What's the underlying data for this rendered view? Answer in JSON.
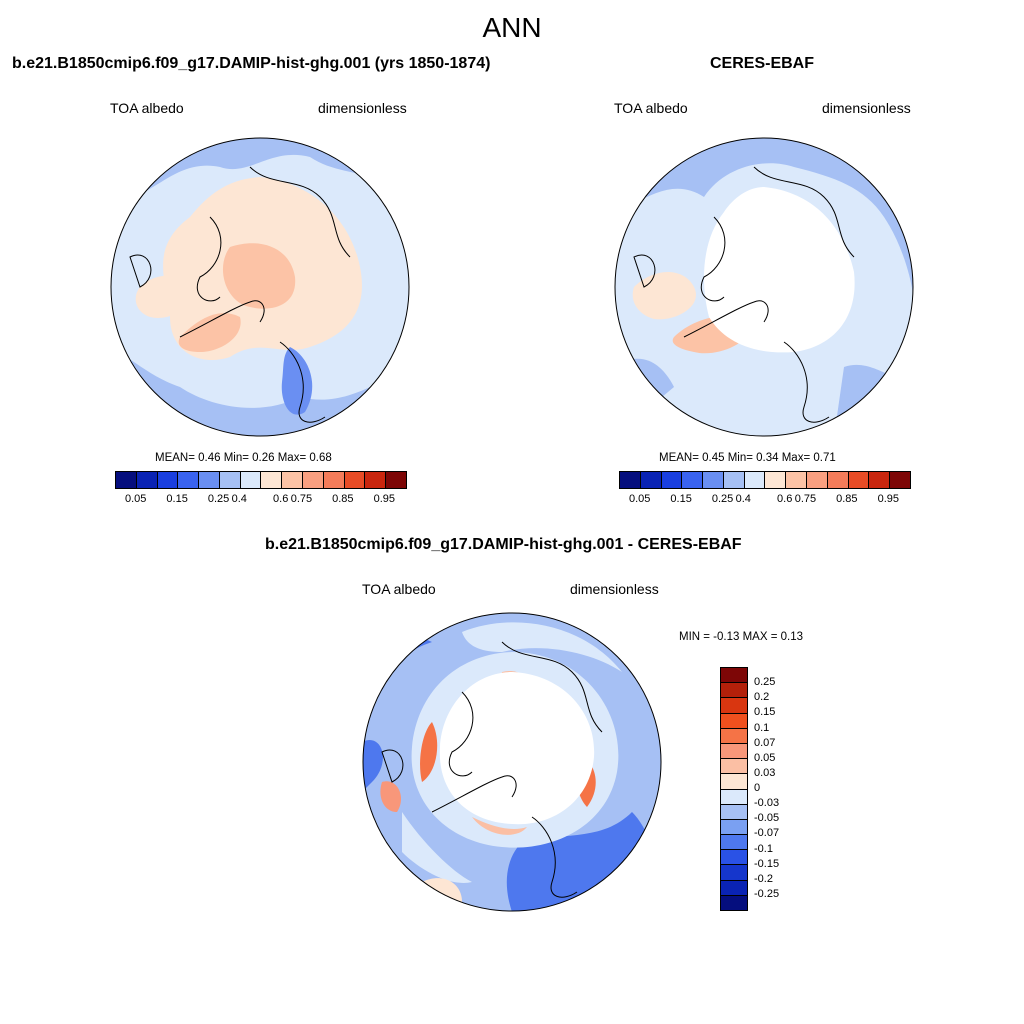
{
  "title": "ANN",
  "panels": {
    "model": {
      "title": "b.e21.B1850cmip6.f09_g17.DAMIP-hist-ghg.001 (yrs 1850-1874)",
      "left_label": "TOA albedo",
      "right_label": "dimensionless",
      "stats": "MEAN=   0.46  Min=   0.26  Max=   0.68"
    },
    "obs": {
      "title": "CERES-EBAF",
      "left_label": "TOA albedo",
      "right_label": "dimensionless",
      "stats": "MEAN=   0.45  Min=   0.34  Max=   0.71"
    },
    "diff": {
      "title": "b.e21.B1850cmip6.f09_g17.DAMIP-hist-ghg.001 - CERES-EBAF",
      "left_label": "TOA albedo",
      "right_label": "dimensionless",
      "stats": "MIN =  -0.13 MAX =   0.13"
    }
  },
  "colorbar_abs": {
    "tick_labels": [
      "0.05",
      "0.15",
      "0.25",
      "0.4",
      "0.6",
      "0.75",
      "0.85",
      "0.95"
    ],
    "colors": [
      "#050e7e",
      "#0a23b4",
      "#1a3fe0",
      "#3a63f0",
      "#6a8ff2",
      "#a6c0f4",
      "#dbe9fb",
      "#fde6d4",
      "#fcc3a6",
      "#f99f80",
      "#f47c5a",
      "#e84c26",
      "#c9260e",
      "#7d0606"
    ]
  },
  "colorbar_diff": {
    "tick_labels": [
      "0.25",
      "0.2",
      "0.15",
      "0.1",
      "0.07",
      "0.05",
      "0.03",
      "0",
      "-0.03",
      "-0.05",
      "-0.07",
      "-0.1",
      "-0.15",
      "-0.2",
      "-0.25"
    ],
    "colors": [
      "#7d0606",
      "#b3200a",
      "#d93610",
      "#f0501e",
      "#f57346",
      "#f8977a",
      "#fbbfa4",
      "#fde6d4",
      "#dbe9fb",
      "#a6c0f4",
      "#7aa0f2",
      "#4e78ee",
      "#2a52e6",
      "#1536cc",
      "#0a23b4",
      "#050e7e"
    ]
  }
}
